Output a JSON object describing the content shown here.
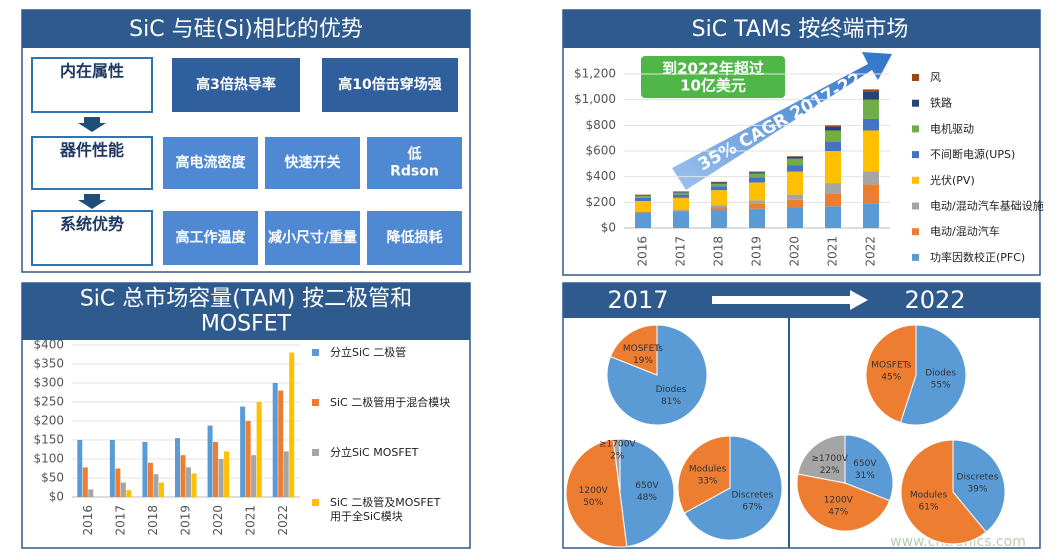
{
  "diagram": {
    "title": "SiC 与硅(Si)相比的优势",
    "rows": [
      {
        "label": "内在属性",
        "items": [
          "高3倍热导率",
          "高10倍击穿场强"
        ]
      },
      {
        "label": "器件性能",
        "items": [
          "高电流密度",
          "快速开关",
          "低\nRdson"
        ]
      },
      {
        "label": "系统优势",
        "items": [
          "高工作温度",
          "减小尺寸/重量",
          "降低损耗"
        ]
      }
    ]
  },
  "pie_header": {
    "from": "2017",
    "to": "2022"
  },
  "watermark": "www.cntronics.com",
  "chart_data": [
    {
      "type": "bar",
      "stacked": true,
      "title": "SiC TAMs 按终端市场",
      "annotations": [
        "到2022年超过\n10亿美元",
        "35% CAGR 2017-22"
      ],
      "categories": [
        "2016",
        "2017",
        "2018",
        "2019",
        "2020",
        "2021",
        "2022"
      ],
      "series": [
        {
          "name": "功率因数校正(PFC)",
          "color": "#5b9bd5",
          "values": [
            120,
            125,
            140,
            150,
            160,
            170,
            190
          ]
        },
        {
          "name": "电动/混动汽车",
          "color": "#ed7d31",
          "values": [
            5,
            10,
            20,
            40,
            60,
            100,
            150
          ]
        },
        {
          "name": "电动/混动汽车基础设施",
          "color": "#a5a5a5",
          "values": [
            5,
            10,
            15,
            25,
            40,
            80,
            100
          ]
        },
        {
          "name": "光伏(PV)",
          "color": "#ffc000",
          "values": [
            80,
            90,
            120,
            140,
            180,
            250,
            320
          ]
        },
        {
          "name": "不间断电源(UPS)",
          "color": "#4472c4",
          "values": [
            25,
            25,
            30,
            40,
            50,
            70,
            90
          ]
        },
        {
          "name": "电机驱动",
          "color": "#70ad47",
          "values": [
            15,
            15,
            20,
            30,
            50,
            90,
            150
          ]
        },
        {
          "name": "铁路",
          "color": "#264478",
          "values": [
            5,
            5,
            10,
            10,
            15,
            30,
            60
          ]
        },
        {
          "name": "风",
          "color": "#9e480e",
          "values": [
            5,
            5,
            5,
            5,
            5,
            10,
            20
          ]
        }
      ],
      "ylim": [
        0,
        1200
      ],
      "yticks": [
        {
          "value": 0,
          "label": "$0"
        },
        {
          "value": 200,
          "label": "$200"
        },
        {
          "value": 400,
          "label": "$400"
        },
        {
          "value": 600,
          "label": "$600"
        },
        {
          "value": 800,
          "label": "$800"
        },
        {
          "value": 1000,
          "label": "$1,000"
        },
        {
          "value": 1200,
          "label": "$1,200"
        }
      ],
      "grid": true
    },
    {
      "type": "bar",
      "stacked": false,
      "title": "SiC 总市场容量(TAM) 按二极管和\nMOSFET",
      "categories": [
        "2016",
        "2017",
        "2018",
        "2019",
        "2020",
        "2021",
        "2022"
      ],
      "series": [
        {
          "name": "分立SiC 二极管",
          "color": "#5b9bd5",
          "values": [
            150,
            150,
            145,
            155,
            188,
            238,
            300
          ]
        },
        {
          "name": "SiC 二极管用于混合模块",
          "color": "#ed7d31",
          "values": [
            78,
            75,
            90,
            110,
            145,
            200,
            280
          ]
        },
        {
          "name": "分立SiC MOSFET",
          "color": "#a5a5a5",
          "values": [
            20,
            38,
            60,
            78,
            100,
            110,
            120
          ]
        },
        {
          "name": "SiC 二极管及MOSFET\n用于全SiC模块",
          "color": "#ffc000",
          "values": [
            0,
            18,
            38,
            62,
            120,
            250,
            380
          ]
        }
      ],
      "ylim": [
        0,
        400
      ],
      "yticks": [
        {
          "value": 0,
          "label": "$0"
        },
        {
          "value": 50,
          "label": "$50"
        },
        {
          "value": 100,
          "label": "$100"
        },
        {
          "value": 150,
          "label": "$150"
        },
        {
          "value": 200,
          "label": "$200"
        },
        {
          "value": 250,
          "label": "$250"
        },
        {
          "value": 300,
          "label": "$300"
        },
        {
          "value": 350,
          "label": "$350"
        },
        {
          "value": 400,
          "label": "$400"
        }
      ],
      "grid": true
    },
    {
      "type": "pie",
      "categories": [
        "Diodes",
        "MOSFETs"
      ],
      "values": [
        81,
        19
      ],
      "value_labels": [
        "81%",
        "19%"
      ],
      "colors": [
        "#5b9bd5",
        "#ed7d31"
      ]
    },
    {
      "type": "pie",
      "categories": [
        "650V",
        "1200V",
        "≥1700V"
      ],
      "values": [
        48,
        50,
        2
      ],
      "value_labels": [
        "48%",
        "50%",
        "2%"
      ],
      "colors": [
        "#5b9bd5",
        "#ed7d31",
        "#a5a5a5"
      ]
    },
    {
      "type": "pie",
      "categories": [
        "Discretes",
        "Modules"
      ],
      "values": [
        67,
        33
      ],
      "value_labels": [
        "67%",
        "33%"
      ],
      "colors": [
        "#5b9bd5",
        "#ed7d31"
      ]
    },
    {
      "type": "pie",
      "categories": [
        "Diodes",
        "MOSFETs"
      ],
      "values": [
        55,
        45
      ],
      "value_labels": [
        "55%",
        "45%"
      ],
      "colors": [
        "#5b9bd5",
        "#ed7d31"
      ]
    },
    {
      "type": "pie",
      "categories": [
        "650V",
        "1200V",
        "≥1700V"
      ],
      "values": [
        31,
        47,
        22
      ],
      "value_labels": [
        "31%",
        "47%",
        "22%"
      ],
      "colors": [
        "#5b9bd5",
        "#ed7d31",
        "#a5a5a5"
      ]
    },
    {
      "type": "pie",
      "categories": [
        "Discretes",
        "Modules"
      ],
      "values": [
        39,
        61
      ],
      "value_labels": [
        "39%",
        "61%"
      ],
      "colors": [
        "#5b9bd5",
        "#ed7d31"
      ]
    }
  ]
}
